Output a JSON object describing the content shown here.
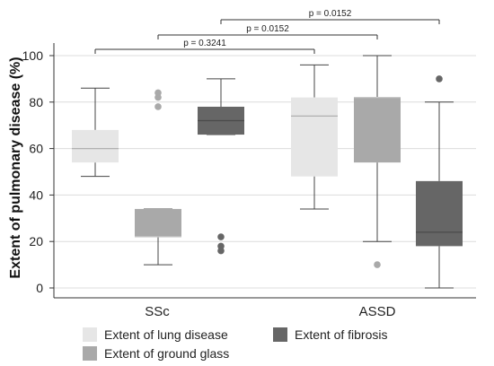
{
  "chart_data": {
    "type": "box",
    "ylabel": "Extent of pulmonary disease (%)",
    "ylim": [
      0,
      105
    ],
    "yticks": [
      0,
      20,
      40,
      60,
      80,
      100
    ],
    "grid": "horizontal",
    "categories": [
      "SSc",
      "ASSD"
    ],
    "series": [
      {
        "name": "Extent of lung disease",
        "color": "#e6e6e6",
        "median_color": "#b0b0b0",
        "boxes": [
          {
            "category": "SSc",
            "min": 48,
            "q1": 54,
            "median": 60,
            "q3": 68,
            "max": 86,
            "outliers": []
          },
          {
            "category": "ASSD",
            "min": 34,
            "q1": 48,
            "median": 74,
            "q3": 82,
            "max": 96,
            "outliers": []
          }
        ]
      },
      {
        "name": "Extent of ground glass",
        "color": "#a9a9a9",
        "median_color": "#c9c9c9",
        "boxes": [
          {
            "category": "SSc",
            "min": 10,
            "q1": 22,
            "median": 22,
            "q3": 34,
            "max": 34,
            "outliers": [
              78,
              82,
              84
            ]
          },
          {
            "category": "ASSD",
            "min": 20,
            "q1": 54,
            "median": 82,
            "q3": 82,
            "max": 100,
            "outliers": [
              10
            ]
          }
        ]
      },
      {
        "name": "Extent of fibrosis",
        "color": "#666666",
        "median_color": "#4a4a4a",
        "boxes": [
          {
            "category": "SSc",
            "min": 66,
            "q1": 66,
            "median": 72,
            "q3": 78,
            "max": 90,
            "outliers": [
              16,
              18,
              22
            ]
          },
          {
            "category": "ASSD",
            "min": 0,
            "q1": 18,
            "median": 24,
            "q3": 46,
            "max": 80,
            "outliers": [
              90
            ]
          }
        ]
      }
    ],
    "comparisons": [
      {
        "label": "p = 0.3241",
        "from_category": "SSc",
        "from_series": 0,
        "to_category": "ASSD",
        "to_series": 0
      },
      {
        "label": "p = 0.0152",
        "from_category": "SSc",
        "from_series": 1,
        "to_category": "ASSD",
        "to_series": 1
      },
      {
        "label": "p = 0.0152",
        "from_category": "SSc",
        "from_series": 2,
        "to_category": "ASSD",
        "to_series": 2
      }
    ],
    "legend": [
      {
        "label": "Extent of lung disease",
        "color": "#e6e6e6"
      },
      {
        "label": "Extent of ground glass",
        "color": "#a9a9a9"
      },
      {
        "label": "Extent of fibrosis",
        "color": "#666666"
      }
    ],
    "legend_position": "bottom"
  }
}
